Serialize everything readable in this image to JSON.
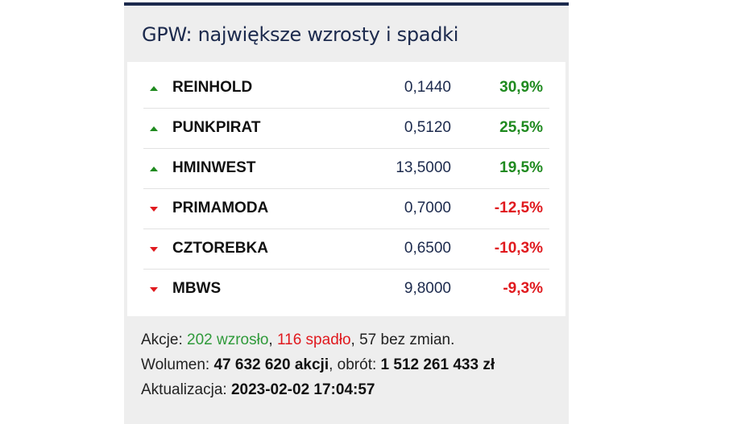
{
  "header": {
    "title": "GPW: największe wzrosty i spadki"
  },
  "table": {
    "rows": [
      [
        "REINHOLD",
        "0,1440",
        "30,9%"
      ],
      [
        "PUNKPIRAT",
        "0,5120",
        "25,5%"
      ],
      [
        "HMINWEST",
        "13,5000",
        "19,5%"
      ],
      [
        "PRIMAMODA",
        "0,7000",
        "-12,5%"
      ],
      [
        "CZTOREBKA",
        "0,6500",
        "-10,3%"
      ],
      [
        "MBWS",
        "9,8000",
        "-9,3%"
      ]
    ]
  },
  "footer": {
    "lines": [
      [
        "Akcje: ",
        "202 wzrosło",
        ", ",
        "116 spadło",
        ", 57 bez zmian."
      ],
      [
        "Wolumen: ",
        "47 632 620 akcji",
        ", obrót: ",
        "1 512 261 433 zł"
      ],
      [
        "Aktualizacja: ",
        "2023-02-02 17:04:57"
      ]
    ]
  }
}
